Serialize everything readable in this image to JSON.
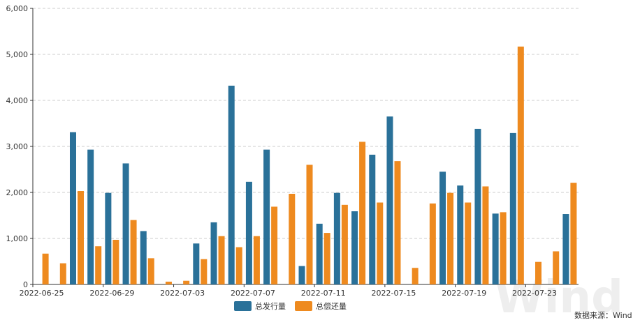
{
  "chart_data": {
    "type": "bar",
    "x": [
      "2022-06-25",
      "2022-06-26",
      "2022-06-27",
      "2022-06-28",
      "2022-06-29",
      "2022-06-30",
      "2022-07-01",
      "2022-07-02",
      "2022-07-03",
      "2022-07-04",
      "2022-07-05",
      "2022-07-06",
      "2022-07-07",
      "2022-07-08",
      "2022-07-09",
      "2022-07-10",
      "2022-07-11",
      "2022-07-12",
      "2022-07-13",
      "2022-07-14",
      "2022-07-15",
      "2022-07-16",
      "2022-07-17",
      "2022-07-18",
      "2022-07-19",
      "2022-07-20",
      "2022-07-21",
      "2022-07-22",
      "2022-07-23",
      "2022-07-24",
      "2022-07-25"
    ],
    "x_tick_labels": [
      "2022-06-25",
      "2022-06-29",
      "2022-07-03",
      "2022-07-07",
      "2022-07-11",
      "2022-07-15",
      "2022-07-19",
      "2022-07-23"
    ],
    "series": [
      {
        "name": "总发行量",
        "color": "#2a7199",
        "values": [
          0,
          0,
          3310,
          2930,
          1990,
          2630,
          1160,
          0,
          0,
          890,
          1350,
          4320,
          2230,
          2930,
          0,
          400,
          1320,
          1990,
          1590,
          2820,
          3650,
          0,
          0,
          2450,
          2150,
          3380,
          1540,
          3290,
          0,
          0,
          1530
        ]
      },
      {
        "name": "总偿还量",
        "color": "#ee8a1f",
        "values": [
          670,
          460,
          2030,
          830,
          970,
          1400,
          570,
          60,
          80,
          550,
          1050,
          810,
          1050,
          1690,
          1970,
          2600,
          1120,
          1730,
          3100,
          1780,
          2680,
          360,
          1760,
          1990,
          1780,
          2130,
          1570,
          5170,
          490,
          720,
          2210
        ]
      }
    ],
    "ylim": [
      0,
      6000
    ],
    "y_ticks": [
      0,
      1000,
      2000,
      3000,
      4000,
      5000,
      6000
    ],
    "y_tick_labels": [
      "0",
      "1,000",
      "2,000",
      "3,000",
      "4,000",
      "5,000",
      "6,000"
    ],
    "grid": true,
    "legend_position": "bottom-center"
  },
  "source_note": "数据来源：Wind",
  "watermark_text": "Wind"
}
